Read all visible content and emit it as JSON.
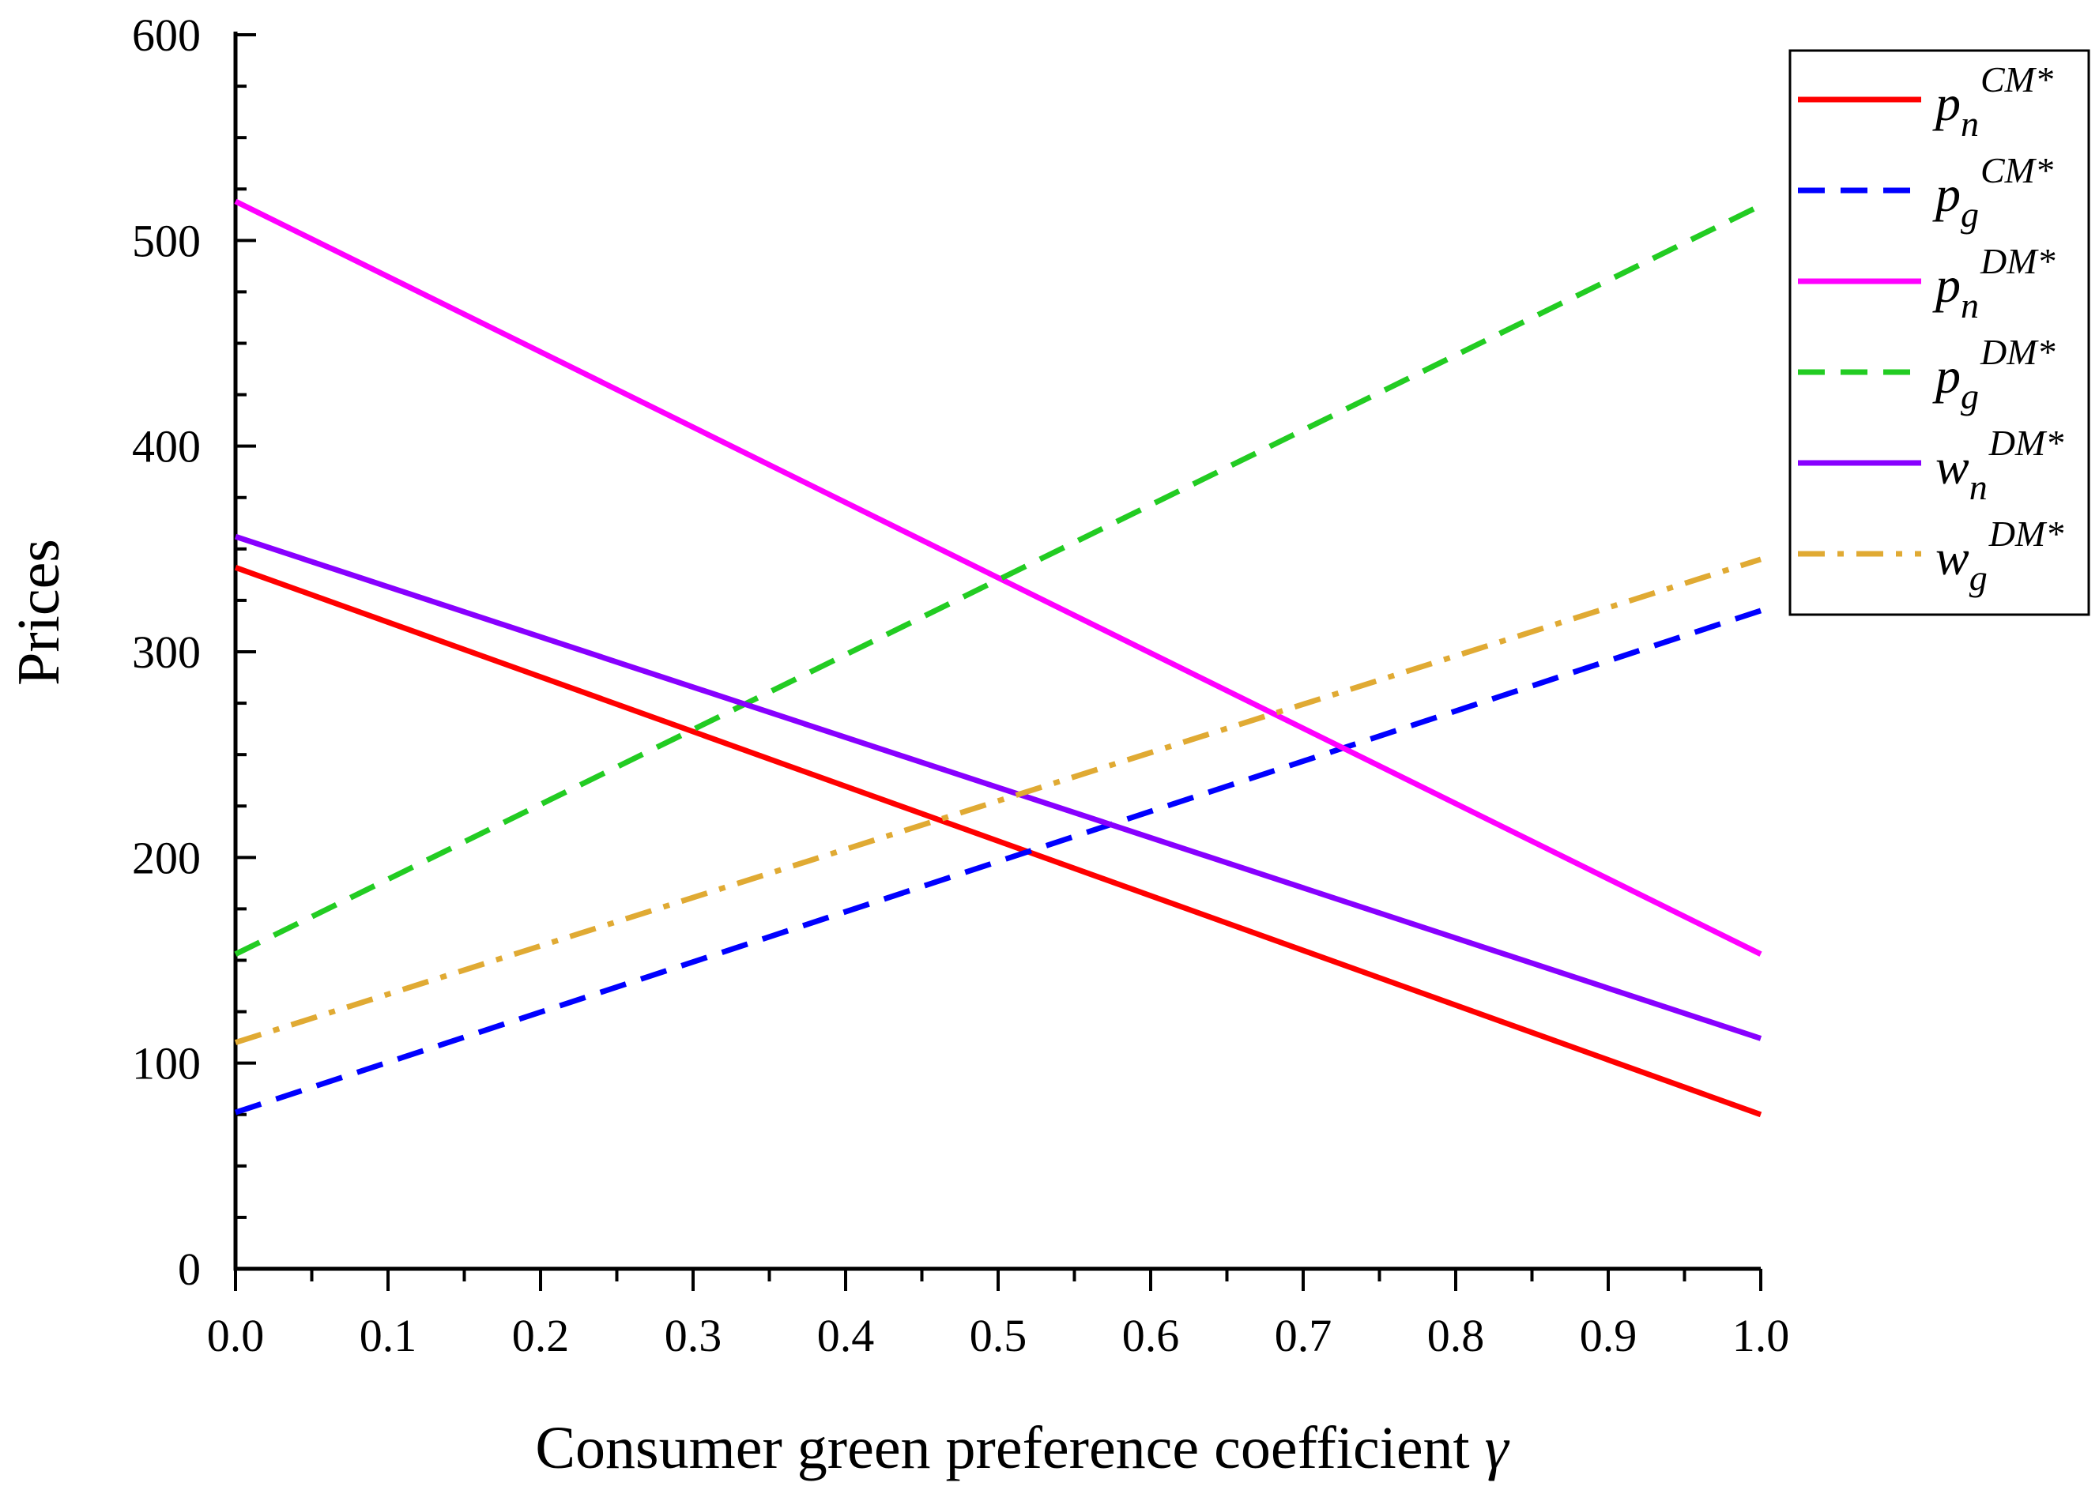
{
  "chart_data": {
    "type": "line",
    "title": "",
    "xlabel": "Consumer green preference coefficient",
    "xlabel_symbol": "γ",
    "ylabel": "Prices",
    "xlim": [
      0,
      1.0
    ],
    "ylim": [
      0,
      600
    ],
    "x_ticks": [
      "0.0",
      "0.1",
      "0.2",
      "0.3",
      "0.4",
      "0.5",
      "0.6",
      "0.7",
      "0.8",
      "0.9",
      "1.0"
    ],
    "y_ticks": [
      "0",
      "100",
      "200",
      "300",
      "400",
      "500",
      "600"
    ],
    "grid": false,
    "legend_position": "top-right",
    "series": [
      {
        "name": "pn CM*",
        "base": "p",
        "sub": "n",
        "sup": "CM*",
        "color": "#ff0000",
        "dash": "solid",
        "x": [
          0,
          1
        ],
        "values": [
          341,
          75
        ]
      },
      {
        "name": "pg CM*",
        "base": "p",
        "sub": "g",
        "sup": "CM*",
        "color": "#0000ff",
        "dash": "dash",
        "x": [
          0,
          1
        ],
        "values": [
          76,
          320
        ]
      },
      {
        "name": "pn DM*",
        "base": "p",
        "sub": "n",
        "sup": "DM*",
        "color": "#ff00ff",
        "dash": "solid",
        "x": [
          0,
          1
        ],
        "values": [
          519,
          153
        ]
      },
      {
        "name": "pg DM*",
        "base": "p",
        "sub": "g",
        "sup": "DM*",
        "color": "#22cc22",
        "dash": "dash",
        "x": [
          0,
          1
        ],
        "values": [
          153,
          517
        ]
      },
      {
        "name": "wn DM*",
        "base": "w",
        "sub": "n",
        "sup": "DM*",
        "color": "#8800ff",
        "dash": "solid",
        "x": [
          0,
          1
        ],
        "values": [
          356,
          112
        ]
      },
      {
        "name": "wg DM*",
        "base": "w",
        "sub": "g",
        "sup": "DM*",
        "color": "#e0aa33",
        "dash": "dashdot",
        "x": [
          0,
          1
        ],
        "values": [
          110,
          345
        ]
      }
    ]
  }
}
